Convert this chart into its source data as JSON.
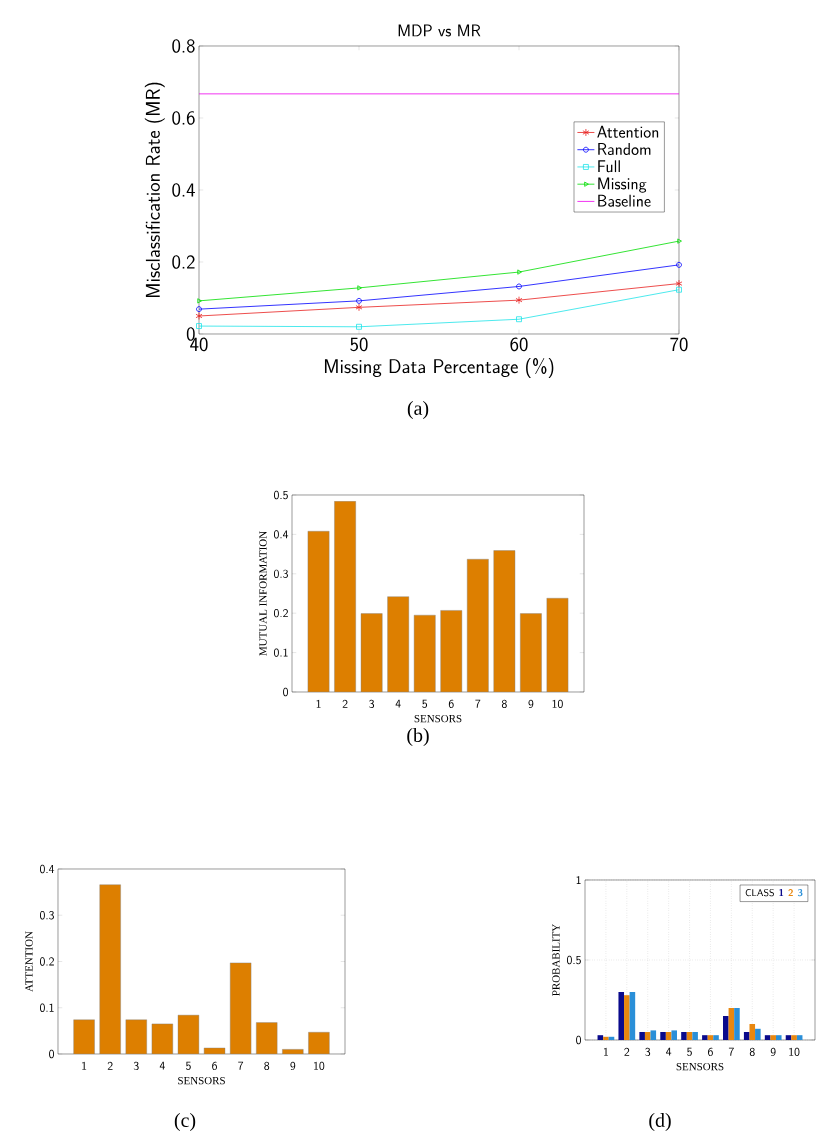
{
  "chart_data": [
    {
      "type": "line",
      "title": "MDP vs MR",
      "xlabel": "Missing Data Percentage (%)",
      "ylabel": "Misclassification Rate (MR)",
      "x": [
        40,
        50,
        60,
        70
      ],
      "xlim": [
        40,
        70
      ],
      "ylim": [
        0,
        0.8
      ],
      "xticks": [
        40,
        50,
        60,
        70
      ],
      "yticks": [
        0,
        0.2,
        0.4,
        0.6,
        0.8
      ],
      "legend": "right",
      "annotations": [
        "(a)"
      ],
      "series": [
        {
          "name": "Attention",
          "color": "#e8211f",
          "marker": "cross",
          "values": [
            0.05,
            0.074,
            0.094,
            0.14
          ]
        },
        {
          "name": "Random",
          "color": "#0000ff",
          "marker": "circle",
          "values": [
            0.069,
            0.092,
            0.132,
            0.192
          ]
        },
        {
          "name": "Full",
          "color": "#1fe3e8",
          "marker": "square",
          "values": [
            0.022,
            0.02,
            0.041,
            0.123
          ]
        },
        {
          "name": "Missing",
          "color": "#00dd00",
          "marker": "triangle",
          "values": [
            0.092,
            0.128,
            0.172,
            0.258
          ]
        },
        {
          "name": "Baseline",
          "color": "#ee00ee",
          "marker": "none",
          "x": [
            40,
            70
          ],
          "values": [
            0.667,
            0.667
          ]
        }
      ]
    },
    {
      "type": "bar",
      "xlabel": "SENSORS",
      "ylabel": "MUTUAL INFORMATION",
      "categories": [
        "1",
        "2",
        "3",
        "4",
        "5",
        "6",
        "7",
        "8",
        "9",
        "10"
      ],
      "values": [
        0.408,
        0.484,
        0.199,
        0.242,
        0.195,
        0.207,
        0.337,
        0.359,
        0.199,
        0.238
      ],
      "color": "#dd7f00",
      "ylim": [
        0,
        0.5
      ],
      "yticks": [
        0,
        0.1,
        0.2,
        0.3,
        0.4,
        0.5
      ],
      "annotations": [
        "(b)"
      ]
    },
    {
      "type": "bar",
      "xlabel": "SENSORS",
      "ylabel": "ATTENTION",
      "categories": [
        "1",
        "2",
        "3",
        "4",
        "5",
        "6",
        "7",
        "8",
        "9",
        "10"
      ],
      "values": [
        0.074,
        0.366,
        0.074,
        0.065,
        0.084,
        0.013,
        0.197,
        0.068,
        0.01,
        0.047
      ],
      "color": "#dd7f00",
      "ylim": [
        0,
        0.4
      ],
      "yticks": [
        0,
        0.1,
        0.2,
        0.3,
        0.4
      ],
      "annotations": [
        "(c)"
      ]
    },
    {
      "type": "bar",
      "xlabel": "SENSORS",
      "ylabel": "PROBABILITY",
      "legend_title": "CLASS",
      "legend": "top right",
      "grid": true,
      "categories": [
        "1",
        "2",
        "3",
        "4",
        "5",
        "6",
        "7",
        "8",
        "9",
        "10"
      ],
      "ylim": [
        0,
        1
      ],
      "yticks": [
        0,
        0.5,
        1
      ],
      "annotations": [
        "(d)"
      ],
      "series": [
        {
          "name": "1",
          "color": "#0a0a8c",
          "values": [
            0.03,
            0.3,
            0.05,
            0.05,
            0.05,
            0.03,
            0.15,
            0.05,
            0.03,
            0.03
          ]
        },
        {
          "name": "2",
          "color": "#e8870f",
          "values": [
            0.02,
            0.28,
            0.05,
            0.05,
            0.05,
            0.03,
            0.2,
            0.1,
            0.03,
            0.03
          ]
        },
        {
          "name": "3",
          "color": "#2a8fd8",
          "values": [
            0.02,
            0.3,
            0.06,
            0.06,
            0.05,
            0.03,
            0.2,
            0.07,
            0.03,
            0.03
          ]
        }
      ]
    }
  ]
}
